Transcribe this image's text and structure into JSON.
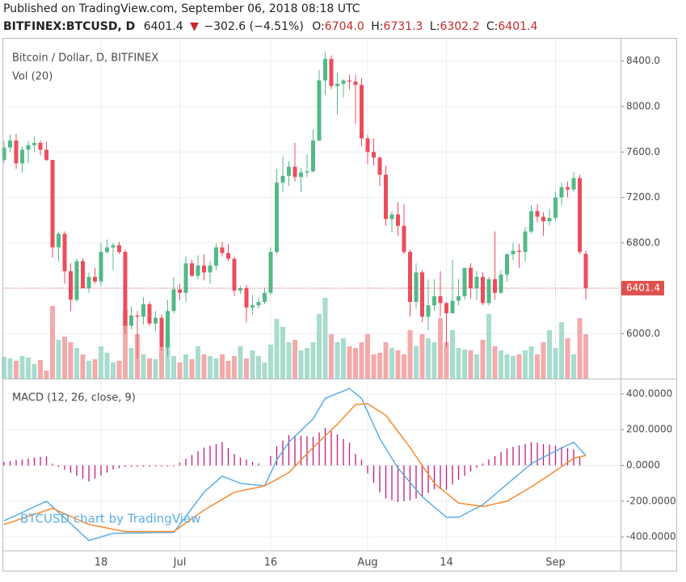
{
  "header": {
    "published": "Published on TradingView.com, September 06, 2018 08:18 UTC",
    "symbol": "BITFINEX:BTCUSD, D",
    "last": "6401.4",
    "arrow": "▼",
    "change": "−302.6 (−4.51%)",
    "o_label": "O:",
    "o": "6704.0",
    "h_label": "H:",
    "h": "6731.3",
    "l_label": "L:",
    "l": "6302.2",
    "c_label": "C:",
    "c": "6401.4"
  },
  "chart_data": [
    {
      "type": "candlestick",
      "title": "Bitcoin / Dollar, D, BITFINEX",
      "volume_title": "Vol (20)",
      "watermark": "BTCUSD chart by TradingView",
      "categories": [
        null,
        null,
        null,
        null,
        null,
        null,
        null,
        null,
        null,
        null,
        null,
        null,
        null,
        null,
        null,
        null,
        "18",
        null,
        null,
        null,
        null,
        null,
        null,
        null,
        null,
        null,
        null,
        null,
        null,
        "Jul",
        null,
        null,
        null,
        null,
        null,
        null,
        null,
        null,
        null,
        null,
        null,
        null,
        null,
        null,
        "16",
        null,
        null,
        null,
        null,
        null,
        null,
        null,
        null,
        null,
        null,
        null,
        null,
        null,
        null,
        null,
        "Aug",
        null,
        null,
        null,
        null,
        null,
        null,
        null,
        null,
        null,
        null,
        null,
        null,
        "14",
        null,
        null,
        null,
        null,
        null,
        null,
        null,
        null,
        null,
        null,
        null,
        null,
        null,
        null,
        null,
        null,
        null,
        "Sep",
        null,
        null,
        null,
        null,
        null
      ],
      "open": [
        7530,
        7640,
        7700,
        7500,
        7620,
        7660,
        7680,
        7620,
        7530,
        6760,
        6880,
        6550,
        6300,
        6640,
        6400,
        6500,
        6460,
        6720,
        6760,
        6780,
        6720,
        6070,
        6160,
        6150,
        6260,
        6090,
        6140,
        5880,
        6200,
        6390,
        6360,
        6620,
        6510,
        6600,
        6540,
        6600,
        6760,
        6710,
        6660,
        6380,
        6400,
        6230,
        6250,
        6280,
        6360,
        6720,
        7330,
        7390,
        7470,
        7380,
        7420,
        7430,
        7700,
        8230,
        8420,
        8180,
        8200,
        8230,
        8220,
        8190,
        7720,
        7600,
        7550,
        7400,
        7010,
        7050,
        6950,
        6720,
        6280,
        6540,
        6150,
        6250,
        6330,
        6270,
        6180,
        6290,
        6330,
        6580,
        6400,
        6500,
        6270,
        6480,
        6360,
        6520,
        6700,
        6730,
        6720,
        6900,
        7080,
        7030,
        6990,
        7020,
        7200,
        7290,
        7270,
        7370,
        6704
      ],
      "high": [
        7700,
        7750,
        7760,
        7650,
        7700,
        7740,
        7700,
        7690,
        7530,
        6900,
        6900,
        6620,
        6660,
        6660,
        6540,
        6580,
        6800,
        6830,
        6800,
        6810,
        6740,
        6240,
        6200,
        6320,
        6280,
        6200,
        6170,
        6300,
        6500,
        6440,
        6680,
        6650,
        6690,
        6700,
        6640,
        6790,
        6810,
        6790,
        6680,
        6420,
        6430,
        6340,
        6320,
        6400,
        6760,
        7450,
        7560,
        7520,
        7680,
        7460,
        7580,
        7800,
        8320,
        8480,
        8450,
        8300,
        8240,
        8280,
        8280,
        8250,
        7750,
        7720,
        7560,
        7480,
        7080,
        7160,
        7140,
        6740,
        6620,
        6560,
        6480,
        6480,
        6550,
        6280,
        6650,
        6480,
        6580,
        6620,
        6550,
        6540,
        6500,
        6900,
        6560,
        6710,
        6800,
        6790,
        6940,
        7130,
        7140,
        7070,
        7100,
        7250,
        7330,
        7340,
        7420,
        7400,
        6731.3
      ],
      "low": [
        7500,
        7600,
        7450,
        7420,
        7500,
        7600,
        7570,
        7520,
        6670,
        6640,
        6440,
        6200,
        6280,
        6400,
        6360,
        6440,
        6420,
        6700,
        6560,
        6700,
        6000,
        6040,
        5780,
        6080,
        6070,
        6020,
        5850,
        5800,
        6180,
        6300,
        6280,
        6500,
        6480,
        6470,
        6440,
        6560,
        6680,
        6640,
        6330,
        6350,
        6100,
        6170,
        6220,
        6260,
        6340,
        6700,
        7250,
        7300,
        7340,
        7250,
        7380,
        7420,
        7700,
        8100,
        8150,
        7930,
        8080,
        8150,
        7850,
        7650,
        7490,
        7480,
        7300,
        6950,
        6890,
        6860,
        6700,
        6150,
        6220,
        6100,
        6030,
        6200,
        6150,
        5880,
        6180,
        6250,
        6300,
        6310,
        6300,
        6250,
        6250,
        6300,
        6350,
        6460,
        6650,
        6580,
        6640,
        6880,
        6980,
        6860,
        6950,
        7000,
        7130,
        7200,
        7250,
        6700,
        6302.2
      ],
      "close": [
        7640,
        7700,
        7500,
        7620,
        7660,
        7680,
        7620,
        7530,
        6760,
        6880,
        6550,
        6300,
        6640,
        6400,
        6500,
        6460,
        6720,
        6760,
        6780,
        6720,
        6070,
        6160,
        6150,
        6260,
        6090,
        6140,
        5880,
        6200,
        6390,
        6360,
        6620,
        6510,
        6600,
        6540,
        6600,
        6760,
        6710,
        6660,
        6380,
        6400,
        6230,
        6250,
        6280,
        6360,
        6720,
        7330,
        7390,
        7470,
        7380,
        7420,
        7430,
        7700,
        8230,
        8420,
        8180,
        8200,
        8230,
        8220,
        8190,
        7720,
        7600,
        7550,
        7400,
        7010,
        7050,
        6950,
        6720,
        6280,
        6540,
        6150,
        6250,
        6330,
        6270,
        6180,
        6290,
        6330,
        6580,
        6400,
        6500,
        6270,
        6480,
        6360,
        6520,
        6700,
        6730,
        6720,
        6900,
        7080,
        7030,
        6990,
        7020,
        7200,
        7290,
        7270,
        7370,
        6720,
        6401.4
      ],
      "volume": [
        27,
        25,
        22,
        28,
        26,
        18,
        23,
        10,
        90,
        48,
        52,
        45,
        38,
        30,
        22,
        24,
        40,
        32,
        20,
        22,
        85,
        38,
        55,
        30,
        25,
        24,
        38,
        52,
        28,
        20,
        30,
        24,
        40,
        30,
        28,
        25,
        30,
        22,
        28,
        40,
        25,
        35,
        28,
        20,
        42,
        74,
        64,
        45,
        48,
        35,
        38,
        45,
        80,
        100,
        55,
        45,
        50,
        40,
        38,
        45,
        55,
        30,
        32,
        45,
        38,
        35,
        30,
        60,
        40,
        55,
        50,
        45,
        75,
        45,
        60,
        38,
        36,
        35,
        30,
        48,
        80,
        40,
        35,
        30,
        28,
        30,
        35,
        40,
        30,
        45,
        60,
        38,
        70,
        50,
        30,
        75,
        55
      ],
      "volume_lim": [
        0,
        100
      ],
      "up_color": "#53b987",
      "down_color": "#eb4d5c",
      "up_volume_color": "#a8dccd",
      "down_volume_color": "#f3aaaa",
      "last_price": {
        "value": 6401.4,
        "label": "6401.4"
      },
      "last_price_color": "#e0504d",
      "ylim": [
        5605,
        8597
      ],
      "yticks": [
        {
          "value": 6000,
          "label": "6000.0"
        },
        {
          "value": 6400,
          "label": "6400.0"
        },
        {
          "value": 6800,
          "label": "6800.0"
        },
        {
          "value": 7200,
          "label": "7200.0"
        },
        {
          "value": 7600,
          "label": "7600.0"
        },
        {
          "value": 8000,
          "label": "8000.0"
        },
        {
          "value": 8400,
          "label": "8400.0"
        }
      ],
      "grid": true
    },
    {
      "type": "macd",
      "title": "MACD (12, 26, close, 9)",
      "series": [
        {
          "name": "MACD",
          "kind": "line",
          "color": "#5aaee6",
          "values": [
            -310,
            -294,
            -279,
            -263,
            -247,
            -231,
            -216,
            -200,
            -231,
            -263,
            -294,
            -326,
            -357,
            -389,
            -420,
            -410,
            -400,
            -390,
            -380,
            -379,
            -379,
            -378,
            -378,
            -377,
            -377,
            -376,
            -376,
            -375,
            -375,
            -330,
            -285,
            -240,
            -195,
            -150,
            -120,
            -90,
            -60,
            -73,
            -87,
            -100,
            -104,
            -108,
            -111,
            -115,
            -43,
            30,
            80,
            130,
            163,
            195,
            228,
            260,
            318,
            375,
            389,
            403,
            416,
            430,
            403,
            375,
            300,
            225,
            150,
            95,
            40,
            -15,
            -55,
            -95,
            -135,
            -175,
            -204,
            -233,
            -261,
            -290,
            -290,
            -290,
            -273,
            -255,
            -238,
            -220,
            -191,
            -163,
            -134,
            -105,
            -76,
            -48,
            -19,
            10,
            28,
            45,
            63,
            80,
            97,
            113,
            130,
            93,
            55
          ]
        },
        {
          "name": "Signal",
          "kind": "line",
          "color": "#f58a2e",
          "values": [
            -330,
            -319,
            -308,
            -296,
            -285,
            -274,
            -263,
            -251,
            -240,
            -255,
            -270,
            -285,
            -300,
            -315,
            -330,
            -337,
            -343,
            -350,
            -357,
            -363,
            -370,
            -370,
            -370,
            -370,
            -370,
            -370,
            -370,
            -370,
            -370,
            -346,
            -322,
            -298,
            -274,
            -250,
            -230,
            -210,
            -190,
            -170,
            -150,
            -143,
            -136,
            -129,
            -122,
            -115,
            -96,
            -78,
            -59,
            -40,
            -5,
            30,
            65,
            100,
            133,
            165,
            198,
            230,
            267,
            303,
            340,
            343,
            345,
            323,
            302,
            280,
            235,
            190,
            145,
            100,
            50,
            0,
            -50,
            -100,
            -128,
            -155,
            -183,
            -210,
            -215,
            -220,
            -225,
            -230,
            -223,
            -215,
            -208,
            -200,
            -180,
            -160,
            -140,
            -120,
            -98,
            -75,
            -53,
            -30,
            -7,
            17,
            40,
            48,
            55
          ]
        },
        {
          "name": "Histogram",
          "kind": "histogram",
          "color": "#c4197f",
          "values": [
            20,
            25,
            29,
            33,
            38,
            43,
            47,
            51,
            9,
            -8,
            -24,
            -41,
            -57,
            -74,
            -90,
            -73,
            -57,
            -40,
            -23,
            -16,
            -9,
            -8,
            -8,
            -7,
            -7,
            -6,
            -6,
            -5,
            -5,
            16,
            37,
            58,
            79,
            100,
            110,
            120,
            130,
            97,
            63,
            43,
            32,
            21,
            11,
            0,
            53,
            108,
            139,
            170,
            168,
            165,
            163,
            160,
            185,
            210,
            191,
            173,
            149,
            127,
            63,
            32,
            -45,
            -98,
            -152,
            -185,
            -195,
            -205,
            -200,
            -195,
            -185,
            -175,
            -154,
            -133,
            -133,
            -135,
            -107,
            -80,
            -58,
            -35,
            -13,
            10,
            32,
            52,
            74,
            95,
            104,
            112,
            121,
            130,
            126,
            120,
            116,
            110,
            104,
            96,
            90,
            45,
            0
          ]
        }
      ],
      "ylim": [
        -476,
        481
      ],
      "yticks": [
        {
          "value": 400,
          "label": "400.0000"
        },
        {
          "value": 200,
          "label": "200.0000"
        },
        {
          "value": 0,
          "label": "0.0000"
        },
        {
          "value": -200,
          "label": "-200.0000"
        },
        {
          "value": -400,
          "label": "-400.0000"
        }
      ],
      "grid": true
    }
  ]
}
